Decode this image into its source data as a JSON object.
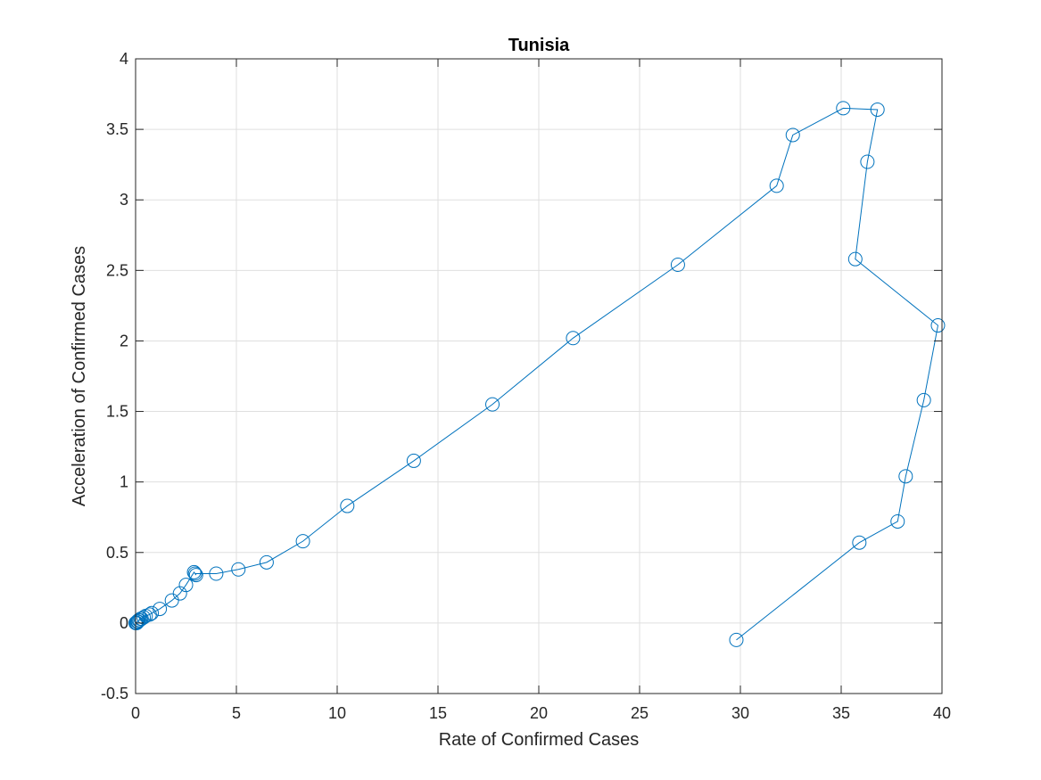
{
  "chart_data": {
    "type": "line",
    "title": "Tunisia",
    "xlabel": "Rate of Confirmed Cases",
    "ylabel": "Acceleration of Confirmed Cases",
    "xlim": [
      0,
      40
    ],
    "ylim": [
      -0.5,
      4
    ],
    "xticks": [
      0,
      5,
      10,
      15,
      20,
      25,
      30,
      35,
      40
    ],
    "yticks": [
      -0.5,
      0,
      0.5,
      1,
      1.5,
      2,
      2.5,
      3,
      3.5,
      4
    ],
    "xtick_labels": [
      "0",
      "5",
      "10",
      "15",
      "20",
      "25",
      "30",
      "35",
      "40"
    ],
    "ytick_labels": [
      "-0.5",
      "0",
      "0.5",
      "1",
      "1.5",
      "2",
      "2.5",
      "3",
      "3.5",
      "4"
    ],
    "grid": true,
    "marker": "circle-open",
    "series_color": "#0072BD",
    "series": [
      {
        "x": [
          0,
          0.02,
          0.04,
          0.06,
          0.08,
          0.1,
          0.12,
          0.15,
          0.2,
          0.25,
          0.3,
          0.4,
          0.5,
          0.7,
          0.8,
          1.2,
          1.8,
          2.2,
          2.5,
          2.9,
          3.0,
          2.95,
          4.0,
          5.1,
          6.5,
          8.3,
          10.5,
          13.8,
          17.7,
          21.7,
          26.9,
          31.8,
          32.6,
          35.1,
          36.8,
          36.3,
          35.7,
          39.8,
          39.1,
          38.2,
          37.8,
          35.9,
          29.8
        ],
        "y": [
          0,
          0,
          0,
          0,
          0.01,
          0.01,
          0.01,
          0.02,
          0.02,
          0.03,
          0.03,
          0.04,
          0.05,
          0.06,
          0.07,
          0.1,
          0.16,
          0.21,
          0.27,
          0.36,
          0.34,
          0.35,
          0.35,
          0.38,
          0.43,
          0.58,
          0.83,
          1.15,
          1.55,
          2.02,
          2.54,
          3.1,
          3.46,
          3.65,
          3.64,
          3.27,
          2.58,
          2.11,
          1.58,
          1.04,
          0.72,
          0.57,
          -0.12
        ]
      }
    ]
  }
}
